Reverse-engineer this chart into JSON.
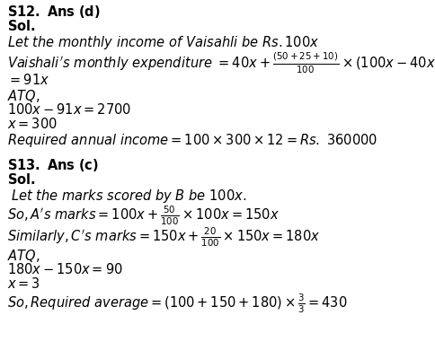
{
  "bg_color": "#ffffff",
  "text_color": "#000000",
  "figsize": [
    4.84,
    4.0
  ],
  "dpi": 100
}
